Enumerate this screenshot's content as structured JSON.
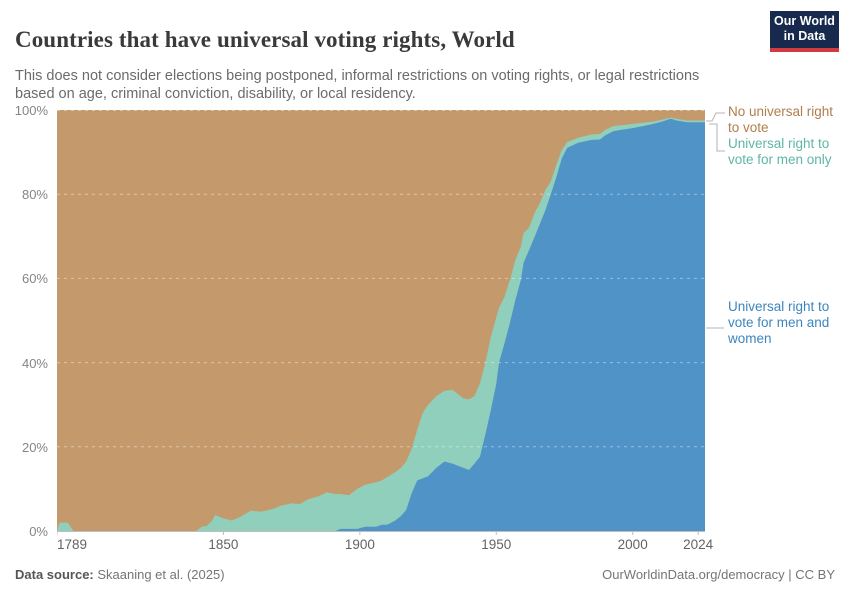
{
  "header": {
    "title": "Countries that have universal voting rights, World",
    "subtitle": "This does not consider elections being postponed, informal restrictions on voting rights, or legal restrictions based on age, criminal conviction, disability, or local residency.",
    "logo": {
      "line1": "Our World",
      "line2": "in Data",
      "bg_color": "#17294d",
      "accent_color": "#d13b41"
    }
  },
  "chart_data": {
    "type": "area",
    "stacked": true,
    "title": "Countries that have universal voting rights, World",
    "xlabel": "",
    "ylabel": "",
    "xlim": [
      1789,
      2026.5
    ],
    "ylim": [
      0,
      100
    ],
    "grid": "horizontal-dashed",
    "legend_position": "right",
    "xticks": [
      1789,
      1850,
      1900,
      1950,
      2000,
      2024
    ],
    "yticks": [
      "0%",
      "20%",
      "40%",
      "60%",
      "80%",
      "100%"
    ],
    "x": [
      1789,
      1790,
      1793,
      1795,
      1800,
      1810,
      1820,
      1830,
      1840,
      1842,
      1844,
      1846,
      1847,
      1850,
      1853,
      1856,
      1860,
      1864,
      1868,
      1871,
      1875,
      1878,
      1881,
      1885,
      1888,
      1891,
      1893,
      1896,
      1899,
      1902,
      1906,
      1908,
      1910,
      1913,
      1915,
      1917,
      1919,
      1921,
      1923,
      1925,
      1928,
      1931,
      1934,
      1936,
      1938,
      1940,
      1942,
      1944,
      1946,
      1948,
      1950,
      1951,
      1953,
      1955,
      1957,
      1959,
      1960,
      1962,
      1964,
      1966,
      1968,
      1970,
      1972,
      1974,
      1976,
      1980,
      1985,
      1988,
      1990,
      1993,
      1996,
      2000,
      2004,
      2007,
      2010,
      2014,
      2016,
      2020,
      2024
    ],
    "unit": "% of countries",
    "series": [
      {
        "name": "Universal right to vote for men and women",
        "color": "#5093c6",
        "label_color": "#3c85bd",
        "values": [
          0,
          0,
          0,
          0,
          0,
          0,
          0,
          0,
          0,
          0,
          0,
          0,
          0,
          0,
          0,
          0,
          0,
          0,
          0,
          0,
          0,
          0,
          0,
          0,
          0,
          0,
          0.5,
          0.5,
          0.5,
          1,
          1,
          1.5,
          1.5,
          2.5,
          3.5,
          5,
          9,
          12,
          12.5,
          13,
          15,
          16.5,
          16,
          15.5,
          15,
          14.5,
          16,
          17.6,
          23,
          28.7,
          35,
          40,
          44.6,
          49.4,
          54.9,
          59.6,
          63.7,
          66.7,
          69.8,
          73,
          76.2,
          80,
          84,
          88.5,
          91,
          92.2,
          92.9,
          93,
          94,
          95,
          95.3,
          95.7,
          96.2,
          96.6,
          97.1,
          97.9,
          97.5,
          97.1,
          97.1
        ]
      },
      {
        "name": "Universal right to vote for men only",
        "color": "#8fcfbc",
        "label_color": "#5fb6a5",
        "values": [
          0,
          2,
          2,
          0,
          0,
          0,
          0,
          0,
          0,
          1,
          1.2,
          2.6,
          3.8,
          3,
          2.5,
          3.3,
          4.8,
          4.6,
          5.2,
          6,
          6.6,
          6.4,
          7.5,
          8.3,
          9.2,
          8.8,
          8.3,
          8,
          9.5,
          10,
          10.6,
          10.5,
          11.3,
          11.5,
          11.5,
          11.5,
          10.5,
          12,
          15.5,
          17,
          17,
          16.8,
          17.5,
          17,
          16.5,
          16.8,
          16,
          17.4,
          17,
          17.3,
          15.8,
          13,
          11,
          10.2,
          9.5,
          7.9,
          7.1,
          5.3,
          5.7,
          4.9,
          4.8,
          3,
          3,
          2,
          1.4,
          1.2,
          1.3,
          1.3,
          1.3,
          1.2,
          1.1,
          1,
          0.8,
          0.6,
          0.5,
          0.3,
          0.4,
          0.4,
          0.4
        ]
      },
      {
        "name": "No universal right to vote",
        "color": "#c49a6c",
        "label_color": "#b07d4d",
        "values": [
          100,
          98,
          98,
          100,
          100,
          100,
          100,
          100,
          100,
          99,
          98.8,
          97.4,
          96.2,
          97,
          97.5,
          96.7,
          95.2,
          95.4,
          94.8,
          94,
          93.4,
          93.6,
          92.5,
          91.7,
          90.8,
          91.2,
          91.2,
          91.5,
          90,
          89,
          88.4,
          88,
          87.2,
          86,
          85,
          83.5,
          80.5,
          76,
          72,
          70,
          68,
          66.7,
          66.5,
          67.5,
          68.5,
          68.7,
          68,
          65,
          60,
          54,
          49.2,
          47,
          44.4,
          40.4,
          35.6,
          32.5,
          29.2,
          28,
          24.5,
          22.1,
          19,
          17,
          13,
          9.5,
          7.6,
          6.6,
          5.8,
          5.7,
          4.7,
          3.8,
          3.6,
          3.3,
          3,
          2.8,
          2.4,
          1.8,
          2.1,
          2.5,
          2.5
        ]
      }
    ]
  },
  "legend": {
    "items": [
      {
        "label": "No universal right to vote",
        "color": "#b07d4d"
      },
      {
        "label": "Universal right to vote for men only",
        "color": "#5fb6a5"
      },
      {
        "label": "Universal right to vote for men and women",
        "color": "#3c85bd"
      }
    ]
  },
  "footer": {
    "source_label": "Data source:",
    "source_value": " Skaaning et al. (2025)",
    "credit": "OurWorldinData.org/democracy | CC BY"
  }
}
